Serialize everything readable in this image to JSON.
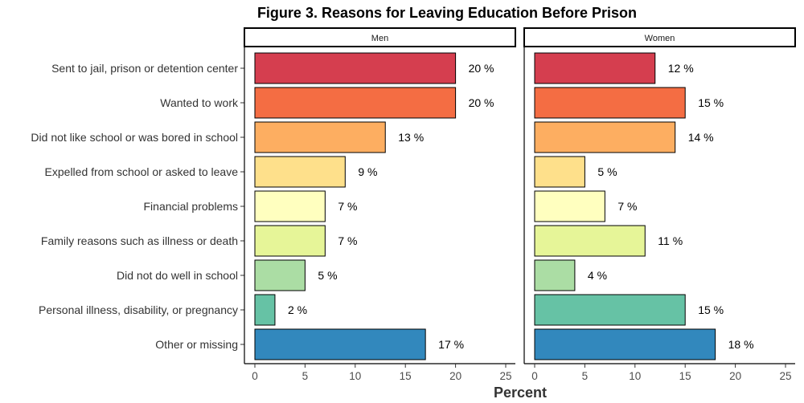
{
  "chart_data": {
    "type": "bar",
    "orientation": "horizontal",
    "title": "Figure 3. Reasons for Leaving Education Before Prison",
    "xlabel": "Percent",
    "ylabel": "",
    "xlim": [
      0,
      25
    ],
    "ticks": [
      0,
      5,
      10,
      15,
      20,
      25
    ],
    "value_suffix": " %",
    "categories": [
      "Sent to jail, prison or detention center",
      "Wanted to work",
      "Did not like school or was bored in school",
      "Expelled from school or asked to leave",
      "Financial problems",
      "Family reasons such as illness or death",
      "Did not do well in school",
      "Personal illness, disability, or pregnancy",
      "Other or missing"
    ],
    "colors": [
      "#d53e4f",
      "#f46d43",
      "#fdae61",
      "#fee08b",
      "#ffffbf",
      "#e6f598",
      "#abdda4",
      "#66c2a5",
      "#3288bd"
    ],
    "panels": [
      {
        "name": "Men",
        "values": [
          20,
          20,
          13,
          9,
          7,
          7,
          5,
          2,
          17
        ]
      },
      {
        "name": "Women",
        "values": [
          12,
          15,
          14,
          5,
          7,
          11,
          4,
          15,
          18
        ]
      }
    ],
    "grid": false,
    "legend": "none"
  }
}
